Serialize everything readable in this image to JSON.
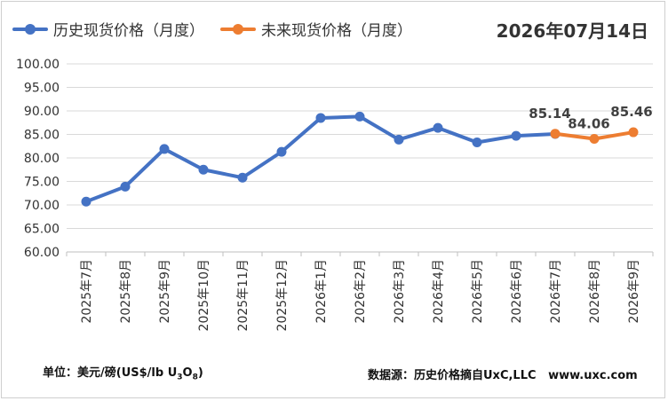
{
  "legend": {
    "historical": "历史现货价格（月度）",
    "forecast": "未来现货价格（月度）"
  },
  "date_title": "2026年07月14日",
  "notes": {
    "unit_prefix": "单位：美元/磅(US$/lb U",
    "unit_sub1": "3",
    "unit_mid": "O",
    "unit_sub2": "8",
    "unit_suffix": ")",
    "source": "数据源：历史价格摘自UxC,LLC   www.uxc.com"
  },
  "colors": {
    "historical": "#4472c4",
    "forecast": "#ed7d31",
    "grid": "#d9d9d9",
    "axis": "#bfbfbf"
  },
  "chart_data": {
    "type": "line",
    "categories": [
      "2025年7月",
      "2025年8月",
      "2025年9月",
      "2025年10月",
      "2025年11月",
      "2025年12月",
      "2026年1月",
      "2026年2月",
      "2026年3月",
      "2026年4月",
      "2026年5月",
      "2026年6月",
      "2026年7月",
      "2026年8月",
      "2026年9月"
    ],
    "series": [
      {
        "name": "历史现货价格（月度）",
        "values": [
          70.7,
          73.9,
          81.9,
          77.5,
          75.8,
          81.3,
          88.5,
          88.8,
          83.9,
          86.4,
          83.3,
          84.7,
          85.1,
          null,
          null
        ]
      },
      {
        "name": "未来现货价格（月度）",
        "values": [
          null,
          null,
          null,
          null,
          null,
          null,
          null,
          null,
          null,
          null,
          null,
          null,
          85.14,
          84.06,
          85.46
        ]
      }
    ],
    "data_labels": [
      {
        "index": 12,
        "text": "85.14"
      },
      {
        "index": 13,
        "text": "84.06"
      },
      {
        "index": 14,
        "text": "85.46"
      }
    ],
    "yticks": [
      "60.00",
      "65.00",
      "70.00",
      "75.00",
      "80.00",
      "85.00",
      "90.00",
      "95.00",
      "100.00"
    ],
    "ylim": [
      60,
      100
    ],
    "grid": true,
    "legend_position": "top-left"
  }
}
